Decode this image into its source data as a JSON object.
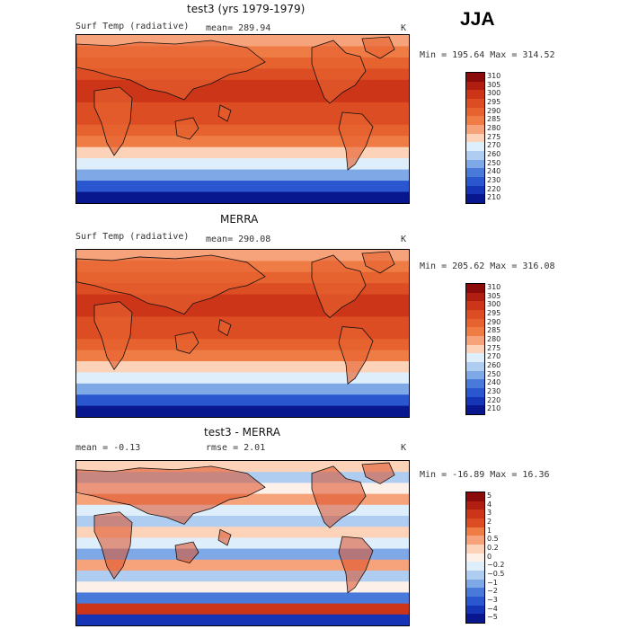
{
  "season": "JJA",
  "panels": [
    {
      "title": "test3 (yrs 1979-1979)",
      "left_label": "Surf Temp (radiative)",
      "mid_label": "mean= 289.94",
      "right_label": "K",
      "stats": "Min = 195.64 Max = 314.52",
      "colorbar": [
        "310",
        "305",
        "300",
        "295",
        "290",
        "285",
        "280",
        "275",
        "270",
        "260",
        "250",
        "240",
        "230",
        "220",
        "210"
      ],
      "colors": [
        "#8b0b0b",
        "#b01e12",
        "#cc3518",
        "#dc4d23",
        "#e6632f",
        "#ef7c45",
        "#f6a37c",
        "#fcd2b8",
        "#dfeefb",
        "#aecdf1",
        "#7fa8e7",
        "#4a7ad9",
        "#2a56cf",
        "#1535b6",
        "#09178f"
      ]
    },
    {
      "title": "MERRA",
      "left_label": "Surf Temp (radiative)",
      "mid_label": "mean= 290.08",
      "right_label": "K",
      "stats": "Min = 205.62 Max = 316.08",
      "colorbar": [
        "310",
        "305",
        "300",
        "295",
        "290",
        "285",
        "280",
        "275",
        "270",
        "260",
        "250",
        "240",
        "230",
        "220",
        "210"
      ],
      "colors": [
        "#8b0b0b",
        "#b01e12",
        "#cc3518",
        "#dc4d23",
        "#e6632f",
        "#ef7c45",
        "#f6a37c",
        "#fcd2b8",
        "#dfeefb",
        "#aecdf1",
        "#7fa8e7",
        "#4a7ad9",
        "#2a56cf",
        "#1535b6",
        "#09178f"
      ]
    },
    {
      "title": "test3 - MERRA",
      "left_label": "mean =   -0.13",
      "mid_label": "rmse =    2.01",
      "right_label": "K",
      "stats": "Min = -16.89 Max =   16.36",
      "colorbar": [
        "5",
        "4",
        "3",
        "2",
        "1",
        "0.5",
        "0.2",
        "0",
        "−0.2",
        "−0.5",
        "−1",
        "−2",
        "−3",
        "−4",
        "−5"
      ],
      "colors": [
        "#8b0b0b",
        "#b01e12",
        "#cc3518",
        "#dc4d23",
        "#ef7c45",
        "#f6a37c",
        "#fcd2b8",
        "#fdf0e8",
        "#dfeefb",
        "#aecdf1",
        "#7fa8e7",
        "#4a7ad9",
        "#2a56cf",
        "#1535b6",
        "#09178f"
      ]
    }
  ]
}
